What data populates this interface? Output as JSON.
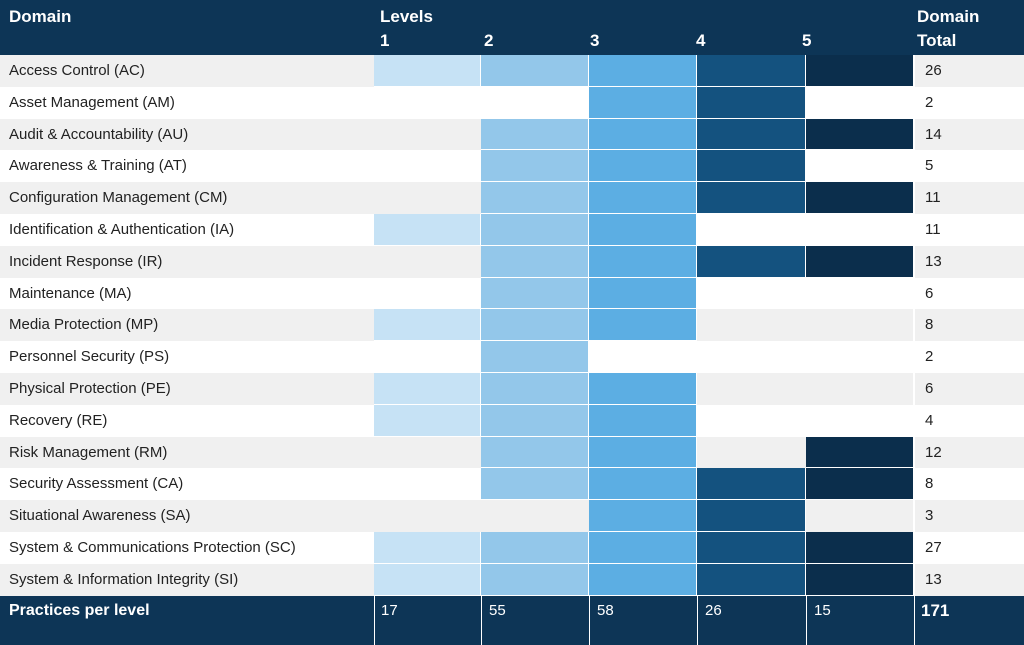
{
  "header": {
    "domain": "Domain",
    "levels": "Levels",
    "level_numbers": [
      "1",
      "2",
      "3",
      "4",
      "5"
    ],
    "total_line1": "Domain",
    "total_line2": "Total"
  },
  "level_colors": [
    "#c6e2f5",
    "#93c7ea",
    "#5caee3",
    "#14527f",
    "#0b2e4c"
  ],
  "rows": [
    {
      "domain": "Access Control (AC)",
      "levels": [
        1,
        1,
        1,
        1,
        1
      ],
      "total": "26"
    },
    {
      "domain": "Asset Management (AM)",
      "levels": [
        0,
        0,
        1,
        1,
        0
      ],
      "total": "2"
    },
    {
      "domain": "Audit & Accountability (AU)",
      "levels": [
        0,
        1,
        1,
        1,
        1
      ],
      "total": "14"
    },
    {
      "domain": "Awareness & Training (AT)",
      "levels": [
        0,
        1,
        1,
        1,
        0
      ],
      "total": "5"
    },
    {
      "domain": "Configuration Management (CM)",
      "levels": [
        0,
        1,
        1,
        1,
        1
      ],
      "total": "11"
    },
    {
      "domain": "Identification & Authentication (IA)",
      "levels": [
        1,
        1,
        1,
        0,
        0
      ],
      "total": "11"
    },
    {
      "domain": "Incident Response (IR)",
      "levels": [
        0,
        1,
        1,
        1,
        1
      ],
      "total": "13"
    },
    {
      "domain": "Maintenance (MA)",
      "levels": [
        0,
        1,
        1,
        0,
        0
      ],
      "total": "6"
    },
    {
      "domain": "Media Protection (MP)",
      "levels": [
        1,
        1,
        1,
        0,
        0
      ],
      "total": "8"
    },
    {
      "domain": "Personnel Security (PS)",
      "levels": [
        0,
        1,
        0,
        0,
        0
      ],
      "total": "2"
    },
    {
      "domain": "Physical Protection (PE)",
      "levels": [
        1,
        1,
        1,
        0,
        0
      ],
      "total": "6"
    },
    {
      "domain": "Recovery (RE)",
      "levels": [
        1,
        1,
        1,
        0,
        0
      ],
      "total": "4"
    },
    {
      "domain": "Risk Management (RM)",
      "levels": [
        0,
        1,
        1,
        0,
        1
      ],
      "total": "12"
    },
    {
      "domain": "Security Assessment (CA)",
      "levels": [
        0,
        1,
        1,
        1,
        1
      ],
      "total": "8"
    },
    {
      "domain": "Situational Awareness (SA)",
      "levels": [
        0,
        0,
        1,
        1,
        0
      ],
      "total": "3"
    },
    {
      "domain": "System & Communications Protection (SC)",
      "levels": [
        1,
        1,
        1,
        1,
        1
      ],
      "total": "27"
    },
    {
      "domain": "System & Information Integrity (SI)",
      "levels": [
        1,
        1,
        1,
        1,
        1
      ],
      "total": "13"
    }
  ],
  "footer": {
    "label": "Practices per level",
    "per_level": [
      "17",
      "55",
      "58",
      "26",
      "15"
    ],
    "total": "171"
  }
}
